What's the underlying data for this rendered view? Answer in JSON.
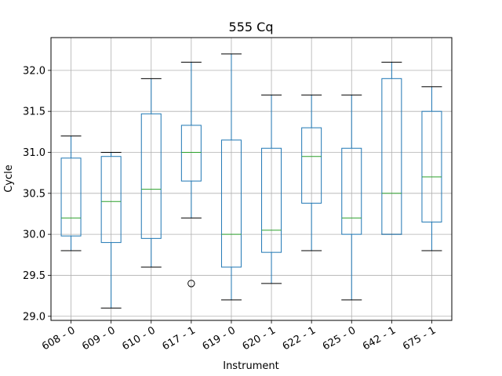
{
  "chart_data": {
    "type": "box",
    "title": "555 Cq",
    "xlabel": "Instrument",
    "ylabel": "Cycle",
    "ylim": [
      28.95,
      32.4
    ],
    "yticks": [
      29.0,
      29.5,
      30.0,
      30.5,
      31.0,
      31.5,
      32.0
    ],
    "ytick_labels": [
      "29.0",
      "29.5",
      "30.0",
      "30.5",
      "31.0",
      "31.5",
      "32.0"
    ],
    "grid": true,
    "categories": [
      "608 - 0",
      "609 - 0",
      "610 - 0",
      "617 - 1",
      "619 - 0",
      "620 - 1",
      "622 - 1",
      "625 - 0",
      "642 - 1",
      "675 - 1"
    ],
    "boxes": [
      {
        "whisker_low": 29.8,
        "q1": 29.98,
        "median": 30.2,
        "q3": 30.93,
        "whisker_high": 31.2,
        "outliers": []
      },
      {
        "whisker_low": 29.1,
        "q1": 29.9,
        "median": 30.4,
        "q3": 30.95,
        "whisker_high": 31.0,
        "outliers": []
      },
      {
        "whisker_low": 29.6,
        "q1": 29.95,
        "median": 30.55,
        "q3": 31.47,
        "whisker_high": 31.9,
        "outliers": []
      },
      {
        "whisker_low": 30.2,
        "q1": 30.65,
        "median": 31.0,
        "q3": 31.33,
        "whisker_high": 32.1,
        "outliers": [
          29.4
        ]
      },
      {
        "whisker_low": 29.2,
        "q1": 29.6,
        "median": 30.0,
        "q3": 31.15,
        "whisker_high": 32.2,
        "outliers": []
      },
      {
        "whisker_low": 29.4,
        "q1": 29.78,
        "median": 30.05,
        "q3": 31.05,
        "whisker_high": 31.7,
        "outliers": []
      },
      {
        "whisker_low": 29.8,
        "q1": 30.38,
        "median": 30.95,
        "q3": 31.3,
        "whisker_high": 31.7,
        "outliers": []
      },
      {
        "whisker_low": 29.2,
        "q1": 30.0,
        "median": 30.2,
        "q3": 31.05,
        "whisker_high": 31.7,
        "outliers": []
      },
      {
        "whisker_low": 30.0,
        "q1": 30.0,
        "median": 30.5,
        "q3": 31.9,
        "whisker_high": 32.1,
        "outliers": []
      },
      {
        "whisker_low": 29.8,
        "q1": 30.15,
        "median": 30.7,
        "q3": 31.5,
        "whisker_high": 31.8,
        "outliers": []
      }
    ],
    "colors": {
      "box": "#1f77b4",
      "median": "#2ca02c",
      "whisker": "#1f77b4",
      "cap": "#000000",
      "grid": "#b0b0b0",
      "outlier": "#000000"
    }
  }
}
